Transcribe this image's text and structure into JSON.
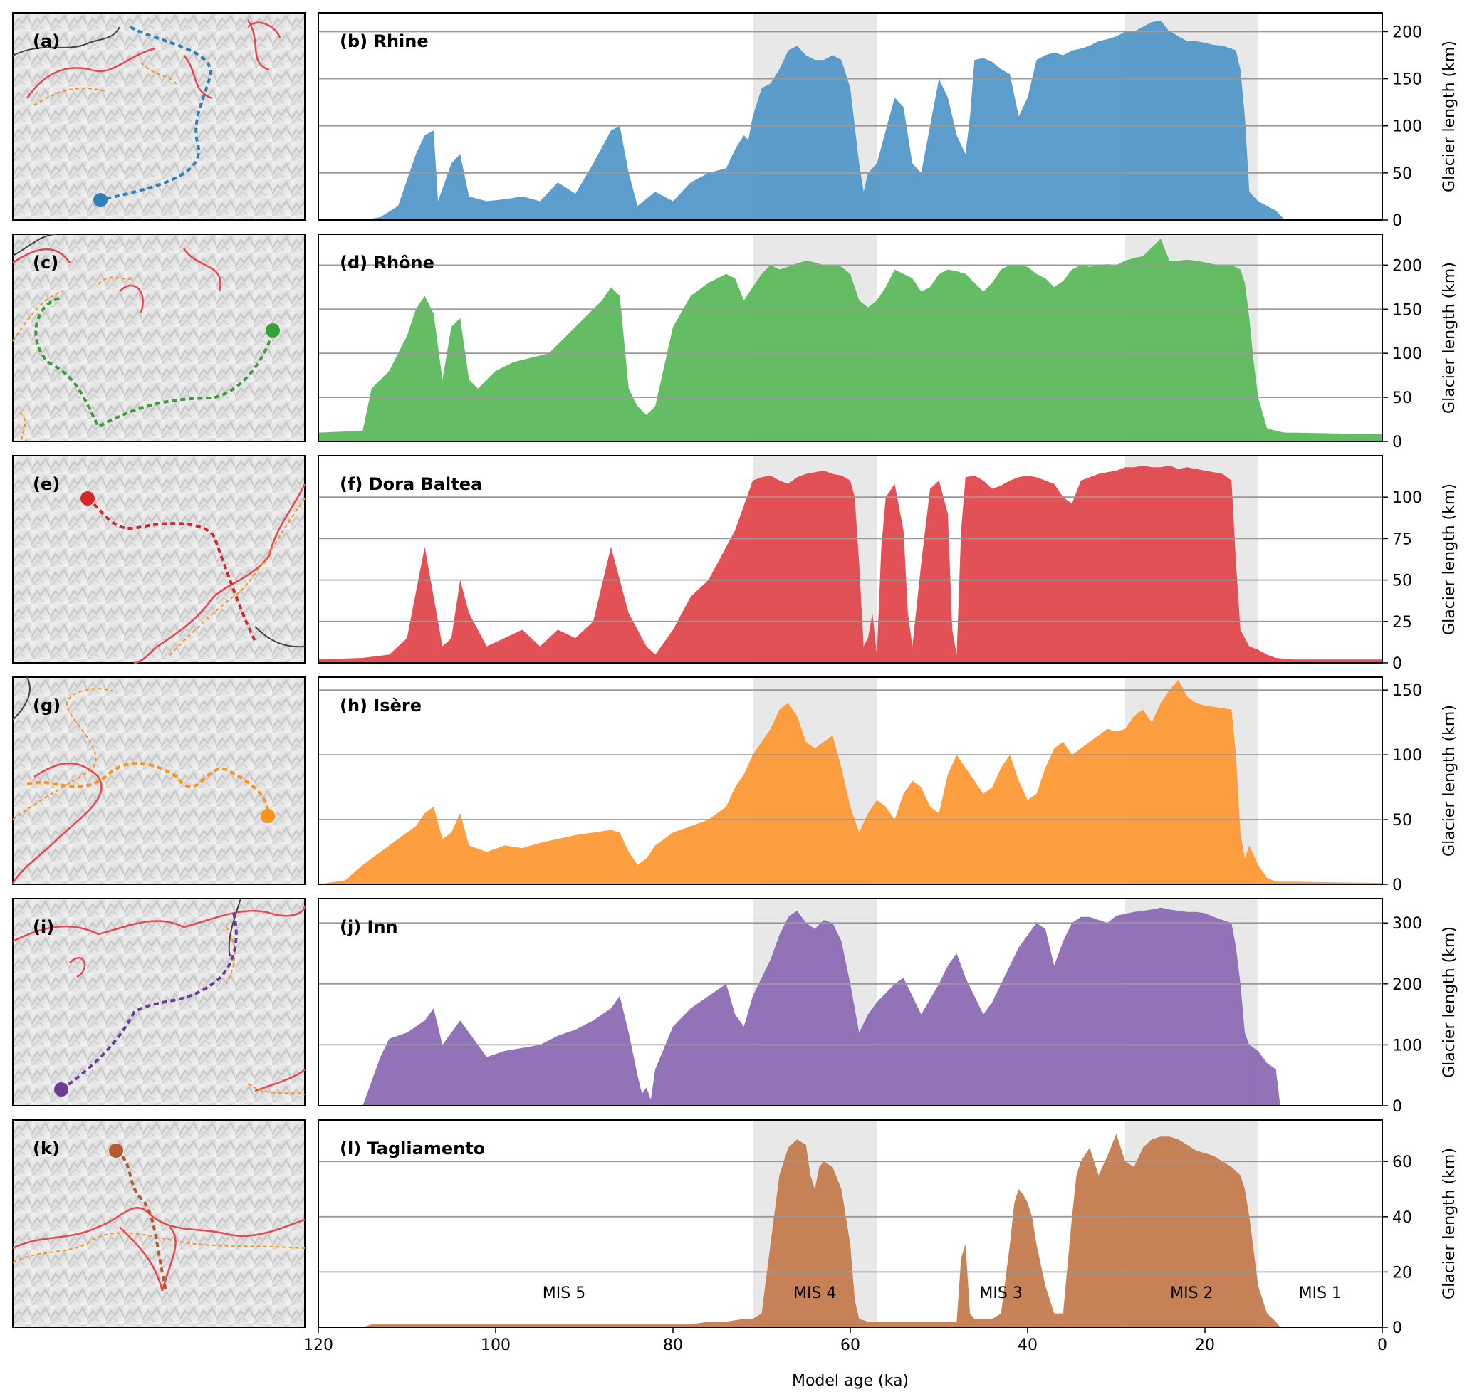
{
  "figure": {
    "xlabel": "Model age (ka)",
    "ylabel": "Glacier length (km)",
    "x_ticks": [
      120,
      100,
      80,
      60,
      40,
      20,
      0
    ]
  },
  "colors": {
    "mis_shading": "#e8e8e8",
    "gridline": "#999999",
    "ice_extent_line": "#e8474f",
    "ice_extent_dashed": "#f7941d",
    "border_line": "#444444"
  },
  "mis_periods": [
    {
      "label": "MIS 5",
      "start_ka": 120,
      "end_ka": 71,
      "shaded": false
    },
    {
      "label": "MIS 4",
      "start_ka": 71,
      "end_ka": 57,
      "shaded": true
    },
    {
      "label": "MIS 3",
      "start_ka": 57,
      "end_ka": 29,
      "shaded": false
    },
    {
      "label": "MIS 2",
      "start_ka": 29,
      "end_ka": 14,
      "shaded": true
    },
    {
      "label": "MIS 1",
      "start_ka": 14,
      "end_ka": 0,
      "shaded": false
    }
  ],
  "map_panels": [
    {
      "label": "(a)",
      "color": "#2e7fbb",
      "path_icon": "rhine-flowline-map"
    },
    {
      "label": "(c)",
      "color": "#3a9e3a",
      "path_icon": "rhone-flowline-map"
    },
    {
      "label": "(e)",
      "color": "#d62728",
      "path_icon": "dora-baltea-flowline-map"
    },
    {
      "label": "(g)",
      "color": "#f7941d",
      "path_icon": "isere-flowline-map"
    },
    {
      "label": "(i)",
      "color": "#6a3d9a",
      "path_icon": "inn-flowline-map"
    },
    {
      "label": "(k)",
      "color": "#b55a2c",
      "path_icon": "tagliamento-flowline-map"
    }
  ],
  "chart_data": [
    {
      "type": "area",
      "label": "(b) Rhine",
      "color": "#5498c8",
      "ylim": [
        0,
        220
      ],
      "yticks": [
        0,
        50,
        100,
        150,
        200
      ],
      "x": [
        115,
        113,
        111,
        109,
        108,
        107,
        106.5,
        105,
        104,
        103,
        101,
        99,
        97,
        95,
        93,
        91,
        89,
        87,
        86,
        85,
        84,
        82,
        80,
        78,
        76,
        74,
        73,
        72,
        71.5,
        71,
        70,
        69,
        68,
        67,
        66,
        65,
        64,
        63,
        62,
        61,
        60,
        59,
        58.5,
        58,
        57,
        56,
        55,
        54,
        53,
        52,
        51,
        50,
        49,
        48,
        47,
        46.5,
        46,
        45,
        44,
        43,
        42,
        41,
        40,
        39,
        38,
        37,
        36,
        35,
        34,
        33,
        32,
        31,
        30,
        29,
        28,
        27,
        26,
        25,
        24,
        23.5,
        23,
        22,
        21,
        20,
        19,
        18,
        17,
        16.5,
        16,
        15.5,
        15,
        14,
        13,
        12,
        11.5,
        11,
        0
      ],
      "values": [
        0,
        3,
        15,
        70,
        90,
        95,
        20,
        60,
        70,
        25,
        20,
        22,
        25,
        20,
        40,
        28,
        60,
        95,
        100,
        50,
        15,
        30,
        20,
        40,
        50,
        55,
        75,
        90,
        85,
        110,
        140,
        145,
        160,
        180,
        185,
        175,
        170,
        170,
        175,
        170,
        140,
        60,
        30,
        50,
        60,
        95,
        130,
        120,
        60,
        50,
        100,
        150,
        130,
        90,
        70,
        110,
        170,
        172,
        168,
        160,
        155,
        110,
        130,
        170,
        175,
        178,
        175,
        180,
        182,
        185,
        190,
        192,
        195,
        200,
        200,
        205,
        210,
        212,
        200,
        198,
        195,
        190,
        190,
        188,
        186,
        185,
        182,
        180,
        160,
        110,
        30,
        20,
        15,
        10,
        5,
        0,
        0
      ]
    },
    {
      "type": "area",
      "label": "(d) Rhône",
      "color": "#5cb85c",
      "ylim": [
        0,
        235
      ],
      "yticks": [
        0,
        50,
        100,
        150,
        200
      ],
      "x": [
        120,
        115,
        114,
        112,
        110,
        109,
        108,
        107,
        106,
        105,
        104,
        103,
        102,
        100,
        98,
        96,
        94,
        92,
        90,
        88,
        87,
        86,
        85,
        84,
        83,
        82,
        80,
        78,
        76,
        74,
        73,
        72,
        71,
        70,
        69,
        68,
        67,
        66,
        65,
        64,
        63,
        62,
        61,
        60,
        59,
        58,
        57,
        56,
        55,
        54,
        53,
        52,
        51,
        50,
        49,
        48,
        47,
        46,
        45,
        44,
        43,
        42,
        41,
        40,
        39,
        38,
        37,
        36,
        35,
        34,
        33,
        32,
        31,
        30,
        29,
        28,
        27,
        26,
        25,
        24,
        23,
        22,
        21,
        20,
        19,
        18,
        17,
        16,
        15.5,
        15,
        14.5,
        14,
        13,
        12,
        11,
        10,
        0
      ],
      "values": [
        10,
        12,
        60,
        80,
        120,
        150,
        165,
        145,
        70,
        130,
        140,
        70,
        60,
        80,
        90,
        95,
        100,
        120,
        140,
        160,
        175,
        165,
        60,
        40,
        30,
        40,
        130,
        165,
        180,
        190,
        185,
        160,
        175,
        190,
        200,
        195,
        198,
        202,
        205,
        203,
        200,
        200,
        198,
        190,
        160,
        152,
        160,
        175,
        195,
        190,
        185,
        170,
        175,
        190,
        195,
        193,
        190,
        180,
        170,
        180,
        195,
        200,
        200,
        198,
        190,
        185,
        175,
        182,
        195,
        200,
        198,
        200,
        201,
        200,
        205,
        208,
        210,
        220,
        230,
        205,
        205,
        206,
        205,
        203,
        201,
        200,
        200,
        195,
        180,
        140,
        90,
        50,
        15,
        12,
        10,
        10,
        8
      ]
    },
    {
      "type": "area",
      "label": "(f) Dora Baltea",
      "color": "#e0484d",
      "ylim": [
        0,
        125
      ],
      "yticks": [
        0,
        25,
        50,
        75,
        100
      ],
      "x": [
        120,
        115,
        112,
        110,
        108,
        107,
        106,
        105,
        104,
        103,
        101,
        99,
        97,
        95,
        93,
        91,
        89,
        87,
        85,
        83,
        82,
        80,
        78,
        76,
        74,
        73,
        72,
        71,
        70,
        69,
        68,
        67,
        66,
        65,
        64,
        63,
        62,
        61,
        60,
        59.5,
        59,
        58.5,
        58,
        57.5,
        57,
        56.5,
        56,
        55,
        54,
        53.5,
        53,
        52,
        51,
        50,
        49,
        48.5,
        48,
        47.5,
        47,
        46,
        45,
        44,
        43,
        42,
        41,
        40,
        39,
        38,
        37,
        36,
        35,
        34,
        33,
        32,
        31,
        30,
        29,
        28,
        27,
        26,
        25,
        24,
        23,
        22,
        21,
        20,
        19,
        18,
        17,
        16.5,
        16,
        15.5,
        15,
        14,
        13,
        12,
        10,
        0
      ],
      "values": [
        2,
        3,
        5,
        15,
        70,
        40,
        10,
        15,
        50,
        30,
        10,
        15,
        20,
        10,
        20,
        15,
        25,
        70,
        30,
        10,
        5,
        20,
        40,
        50,
        70,
        80,
        95,
        110,
        112,
        113,
        110,
        108,
        112,
        114,
        115,
        116,
        114,
        113,
        110,
        100,
        60,
        10,
        15,
        30,
        5,
        70,
        100,
        108,
        80,
        30,
        10,
        60,
        105,
        110,
        90,
        20,
        5,
        80,
        112,
        113,
        110,
        105,
        107,
        110,
        112,
        113,
        112,
        110,
        108,
        100,
        96,
        110,
        112,
        114,
        115,
        116,
        118,
        118,
        119,
        118,
        118,
        119,
        117,
        118,
        117,
        116,
        115,
        114,
        110,
        60,
        20,
        15,
        10,
        8,
        5,
        3,
        2,
        2
      ]
    },
    {
      "type": "area",
      "label": "(h) Isère",
      "color": "#fd9a36",
      "ylim": [
        0,
        160
      ],
      "yticks": [
        0,
        50,
        100,
        150
      ],
      "x": [
        120,
        117,
        115,
        113,
        111,
        109,
        108,
        107,
        106,
        105,
        104,
        103,
        101,
        99,
        97,
        95,
        93,
        91,
        89,
        87,
        86,
        85,
        84,
        83,
        82,
        80,
        78,
        76,
        74,
        73,
        72,
        71,
        70,
        69,
        68,
        67,
        66,
        65,
        64,
        63,
        62,
        61,
        60,
        59,
        58,
        57,
        56,
        55,
        54,
        53,
        52,
        51,
        50,
        49,
        48,
        47,
        46,
        45,
        44,
        43,
        42,
        41,
        40,
        39,
        38,
        37,
        36,
        35,
        34,
        33,
        32,
        31,
        30,
        29,
        28,
        27,
        26,
        25,
        24,
        23,
        22,
        21,
        20,
        19,
        18,
        17,
        16.5,
        16,
        15.5,
        15,
        14,
        13,
        12,
        10,
        0
      ],
      "values": [
        0,
        3,
        15,
        25,
        35,
        45,
        55,
        60,
        35,
        40,
        55,
        30,
        25,
        30,
        28,
        32,
        35,
        38,
        40,
        42,
        40,
        25,
        15,
        20,
        30,
        40,
        45,
        50,
        60,
        75,
        85,
        100,
        110,
        120,
        135,
        140,
        130,
        110,
        105,
        110,
        115,
        90,
        60,
        40,
        55,
        65,
        60,
        50,
        70,
        80,
        75,
        60,
        55,
        85,
        100,
        90,
        80,
        70,
        75,
        90,
        100,
        80,
        65,
        70,
        90,
        105,
        110,
        100,
        105,
        110,
        115,
        120,
        118,
        120,
        130,
        135,
        125,
        140,
        150,
        158,
        145,
        140,
        138,
        137,
        136,
        135,
        100,
        40,
        20,
        30,
        15,
        5,
        2,
        2,
        1
      ]
    },
    {
      "type": "area",
      "label": "(j) Inn",
      "color": "#8c6cb4",
      "ylim": [
        0,
        340
      ],
      "yticks": [
        0,
        100,
        200,
        300
      ],
      "x": [
        115,
        114,
        113,
        112,
        110,
        108,
        107,
        106,
        105,
        104,
        103,
        101,
        99,
        97,
        95,
        93,
        91,
        89,
        87,
        86,
        85,
        84,
        83.5,
        83,
        82.5,
        82,
        80,
        78,
        76,
        74,
        73,
        72,
        71,
        70,
        69,
        68,
        67,
        66,
        65,
        64,
        63,
        62,
        61,
        60,
        59,
        58,
        57,
        56,
        55,
        54,
        53,
        52,
        51,
        50,
        49,
        48,
        47,
        46,
        45,
        44,
        43,
        42,
        41,
        40,
        39,
        38,
        37,
        36,
        35,
        34,
        33,
        32,
        31,
        30,
        29,
        28,
        27,
        26,
        25,
        24,
        23,
        22,
        21,
        20,
        19,
        18,
        17,
        16.5,
        16,
        15.5,
        15,
        14,
        13,
        12,
        11.5,
        0
      ],
      "values": [
        0,
        40,
        80,
        110,
        120,
        140,
        160,
        100,
        120,
        140,
        120,
        80,
        90,
        95,
        100,
        115,
        125,
        140,
        160,
        180,
        120,
        50,
        20,
        30,
        10,
        60,
        130,
        160,
        180,
        200,
        150,
        130,
        180,
        210,
        240,
        280,
        310,
        320,
        300,
        290,
        305,
        300,
        270,
        200,
        120,
        150,
        170,
        185,
        200,
        210,
        180,
        150,
        175,
        200,
        230,
        250,
        210,
        180,
        150,
        170,
        200,
        230,
        260,
        280,
        300,
        290,
        230,
        270,
        300,
        310,
        310,
        305,
        300,
        312,
        315,
        318,
        320,
        322,
        325,
        322,
        320,
        318,
        318,
        316,
        310,
        305,
        300,
        260,
        200,
        120,
        100,
        90,
        70,
        60,
        0,
        0
      ]
    },
    {
      "type": "area",
      "label": "(l) Tagliamento",
      "color": "#c47b4f",
      "ylim": [
        0,
        75
      ],
      "yticks": [
        0,
        20,
        40,
        60
      ],
      "x": [
        120,
        115,
        114,
        110,
        105,
        100,
        95,
        90,
        85,
        80,
        78,
        76,
        74,
        72,
        71,
        70,
        69,
        68,
        67,
        66,
        65,
        64.5,
        64,
        63.5,
        63,
        62,
        61,
        60,
        59.5,
        59,
        58,
        56,
        54,
        52,
        50,
        48,
        47.5,
        47,
        46.5,
        46,
        45,
        44,
        43,
        42,
        41.5,
        41,
        40.5,
        40,
        39.5,
        39,
        38,
        37,
        36,
        35,
        34.5,
        34,
        33,
        32,
        31,
        30,
        29,
        28,
        27,
        26,
        25,
        24,
        23,
        22,
        21,
        20,
        19,
        18,
        17,
        16,
        15.5,
        15,
        14,
        13,
        12,
        11.5,
        0
      ],
      "values": [
        0,
        0,
        1,
        1,
        1,
        1,
        1,
        1,
        1,
        1,
        1,
        2,
        2,
        3,
        3,
        5,
        30,
        55,
        65,
        68,
        66,
        55,
        50,
        58,
        60,
        58,
        50,
        30,
        10,
        3,
        2,
        2,
        2,
        2,
        2,
        2,
        25,
        30,
        5,
        3,
        3,
        3,
        5,
        30,
        45,
        50,
        48,
        45,
        40,
        30,
        15,
        5,
        5,
        40,
        55,
        60,
        65,
        55,
        62,
        70,
        60,
        58,
        65,
        68,
        69,
        69,
        68,
        66,
        64,
        63,
        62,
        60,
        58,
        55,
        50,
        40,
        15,
        5,
        2,
        0,
        0
      ]
    }
  ]
}
